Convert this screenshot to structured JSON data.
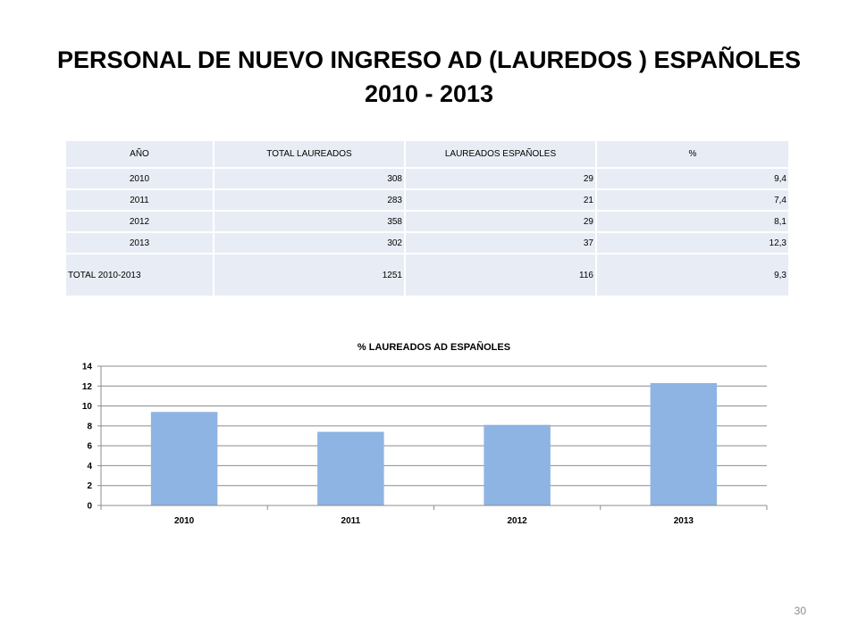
{
  "slide": {
    "title_line1": "PERSONAL DE NUEVO INGRESO AD (LAUREDOS ) ESPAÑOLES",
    "title_line2": "2010 - 2013",
    "page_number": "30"
  },
  "table": {
    "headers": [
      "AÑO",
      "TOTAL LAUREADOS",
      "LAUREADOS ESPAÑOLES",
      "%"
    ],
    "rows": [
      [
        "2010",
        "308",
        "29",
        "9,4"
      ],
      [
        "2011",
        "283",
        "21",
        "7,4"
      ],
      [
        "2012",
        "358",
        "29",
        "8,1"
      ],
      [
        "2013",
        "302",
        "37",
        "12,3"
      ],
      [
        "TOTAL 2010-2013",
        "1251",
        "116",
        "9,3"
      ]
    ],
    "cell_color": "#e8edf5"
  },
  "chart_data": {
    "type": "bar",
    "title": "% LAUREADOS AD ESPAÑOLES",
    "categories": [
      "2010",
      "2011",
      "2012",
      "2013"
    ],
    "values": [
      9.4,
      7.4,
      8.1,
      12.3
    ],
    "ylim": [
      0,
      14
    ],
    "yticks": [
      0,
      2,
      4,
      6,
      8,
      10,
      12,
      14
    ],
    "xlabel": "",
    "ylabel": "",
    "grid": true,
    "legend": "none",
    "bar_color": "#8eb4e3",
    "grid_color": "#8c8c8c"
  }
}
